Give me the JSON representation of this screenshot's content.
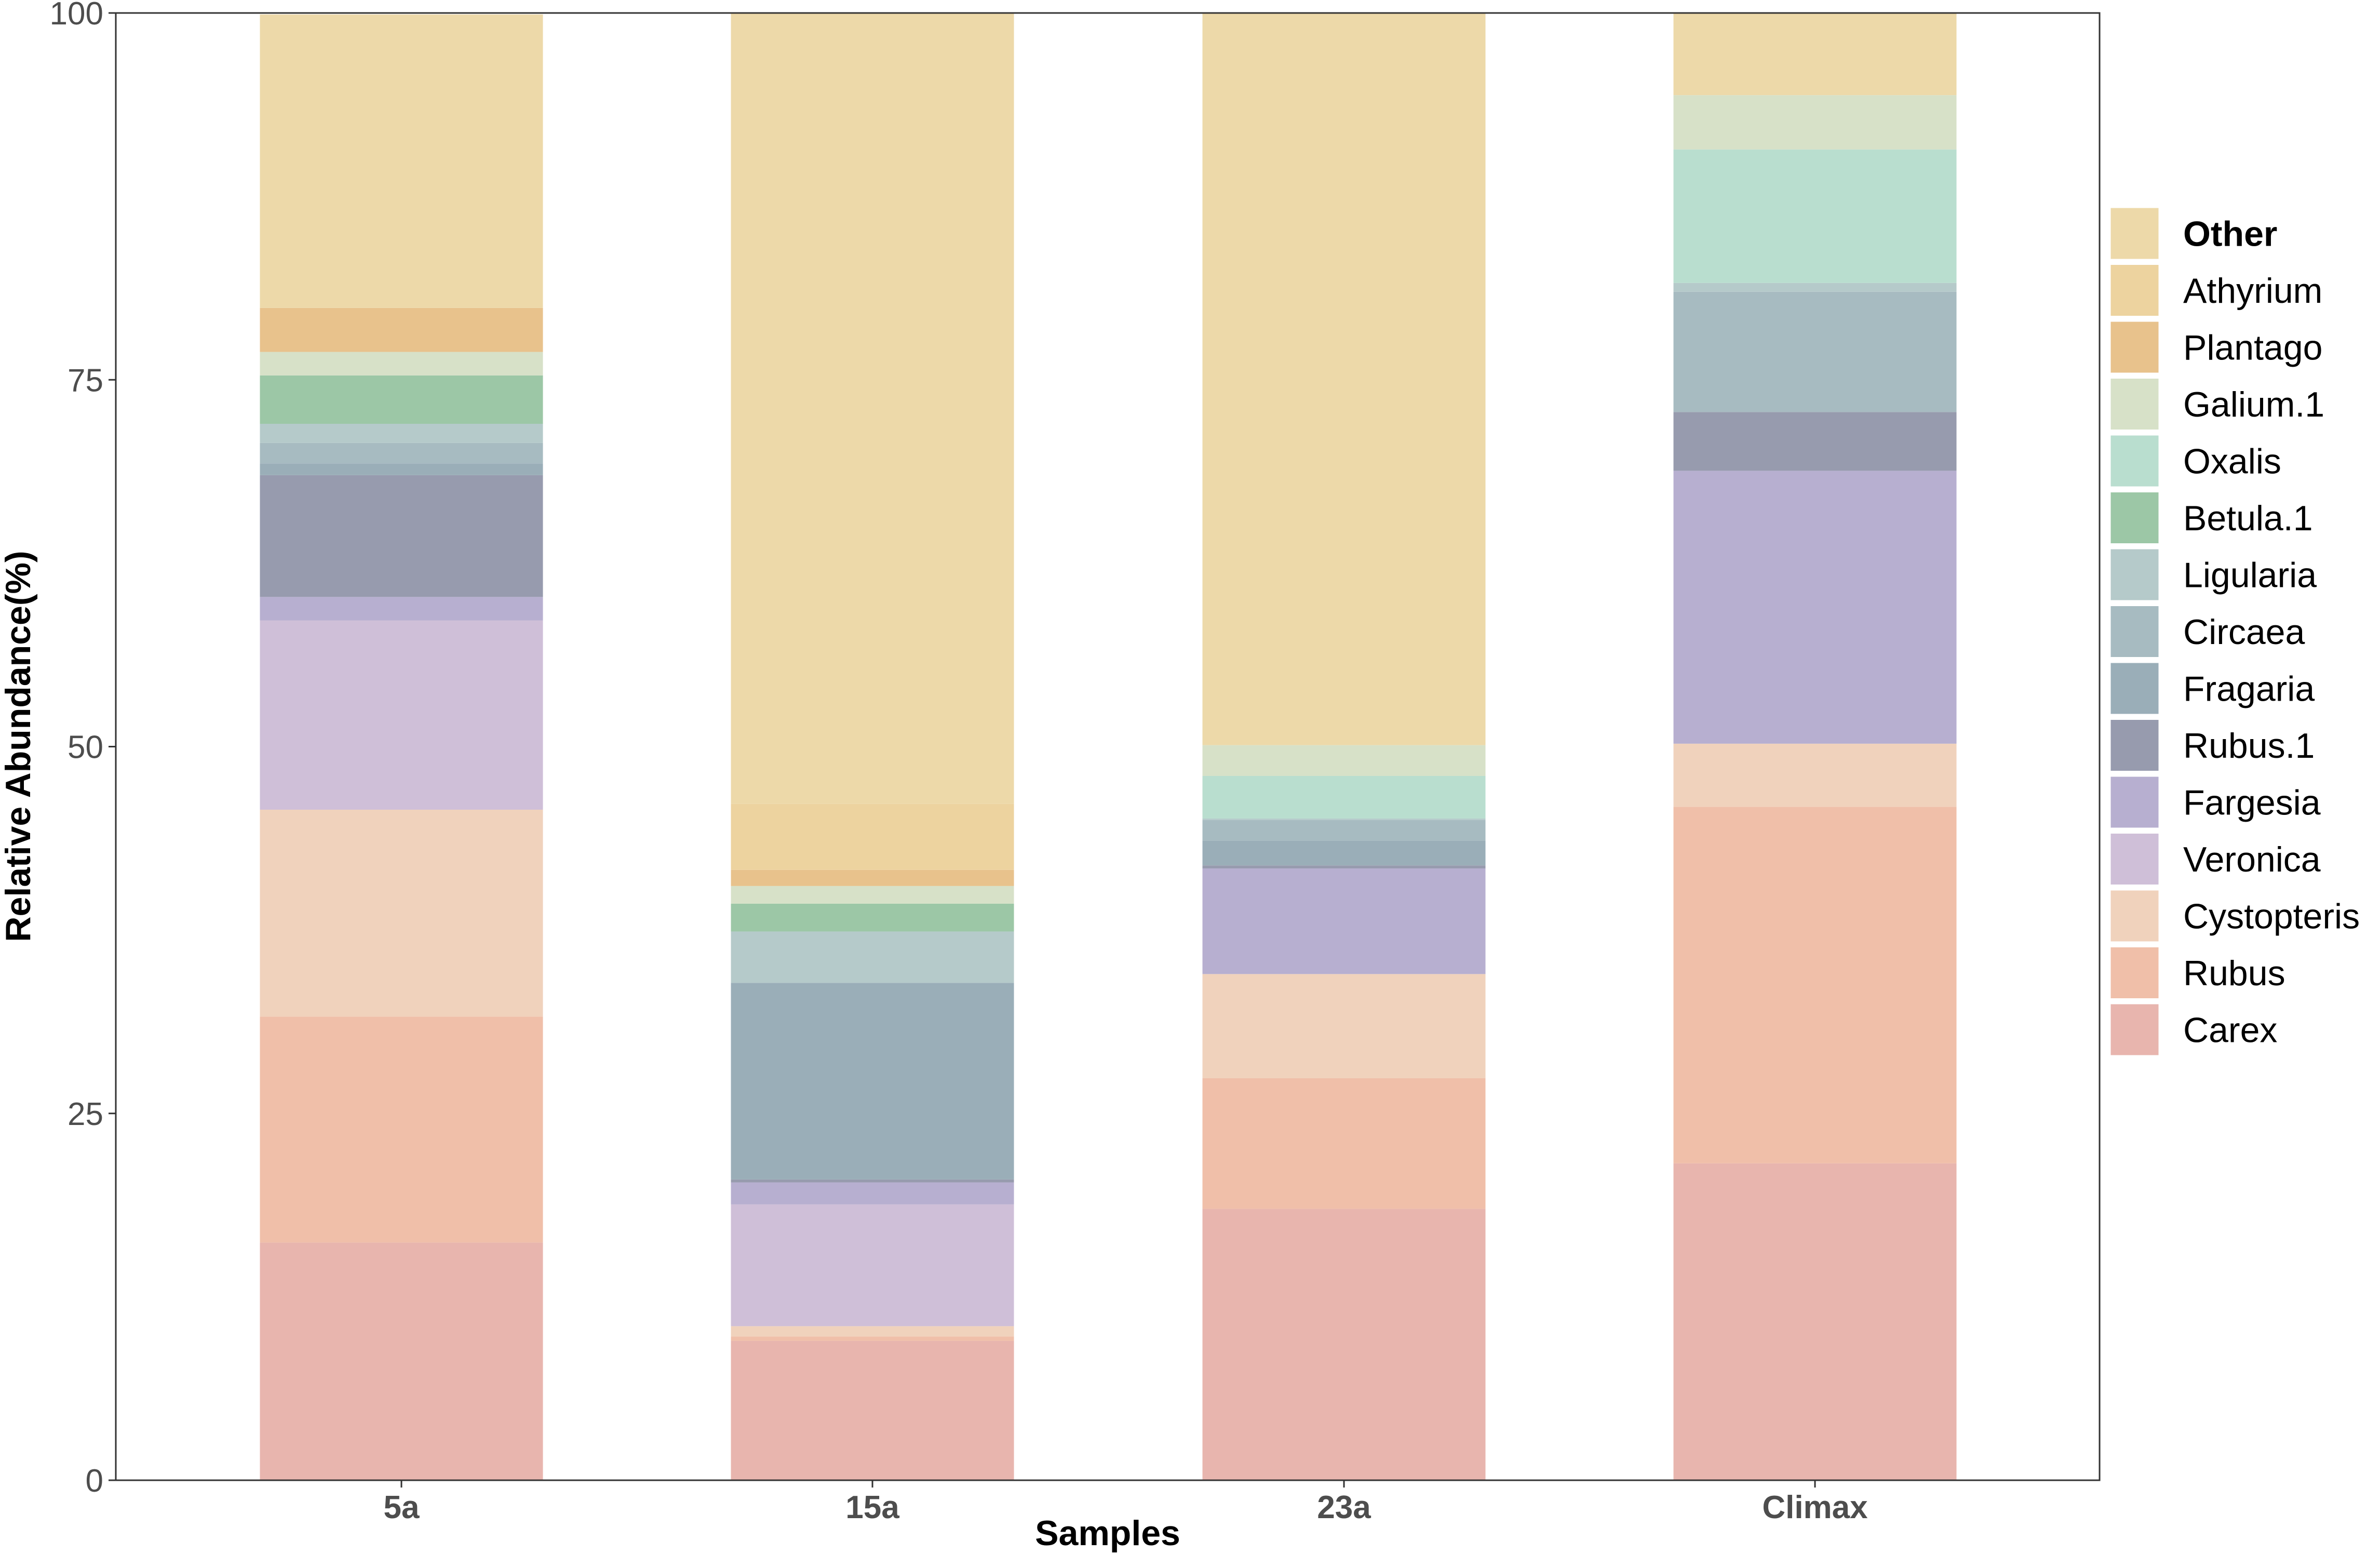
{
  "chart_data": {
    "type": "bar",
    "stacked": true,
    "categories": [
      "5a",
      "15a",
      "23a",
      "Climax"
    ],
    "xlabel": "Samples",
    "ylabel": "Relative Abundance(%)",
    "ylim": [
      0,
      100
    ],
    "yticks": [
      0,
      25,
      50,
      75,
      100
    ],
    "grid": false,
    "legend_position": "right",
    "series": [
      {
        "name": "Carex",
        "color": "#E8B5AE",
        "values": [
          16.2,
          9.5,
          18.5,
          21.6
        ]
      },
      {
        "name": "Rubus",
        "color": "#F0BFA9",
        "values": [
          15.4,
          0.3,
          8.9,
          24.3
        ]
      },
      {
        "name": "Cystopteris",
        "color": "#F0D2BC",
        "values": [
          14.1,
          0.7,
          7.1,
          4.3
        ]
      },
      {
        "name": "Veronica",
        "color": "#CFBFD8",
        "values": [
          12.9,
          8.3,
          0.0,
          0.0
        ]
      },
      {
        "name": "Fargesia",
        "color": "#B7AFD0",
        "values": [
          1.6,
          1.5,
          7.2,
          18.6
        ]
      },
      {
        "name": "Rubus.1",
        "color": "#979BAE",
        "values": [
          8.3,
          0.2,
          0.2,
          4.0
        ]
      },
      {
        "name": "Fragaria",
        "color": "#9AAEB8",
        "values": [
          0.8,
          13.4,
          1.7,
          0.0
        ]
      },
      {
        "name": "Circaea",
        "color": "#A7BBC1",
        "values": [
          1.4,
          0.0,
          1.4,
          8.2
        ]
      },
      {
        "name": "Ligularia",
        "color": "#B5CACA",
        "values": [
          1.3,
          3.5,
          0.1,
          0.6
        ]
      },
      {
        "name": "Betula.1",
        "color": "#9CC7A6",
        "values": [
          3.3,
          1.9,
          0.0,
          0.0
        ]
      },
      {
        "name": "Oxalis",
        "color": "#B9DECF",
        "values": [
          0.0,
          0.0,
          2.9,
          9.1
        ]
      },
      {
        "name": "Galium.1",
        "color": "#D7E1C8",
        "values": [
          1.6,
          1.2,
          2.1,
          3.7
        ]
      },
      {
        "name": "Plantago",
        "color": "#E8C28C",
        "values": [
          3.0,
          1.1,
          0.0,
          0.0
        ]
      },
      {
        "name": "Athyrium",
        "color": "#EDD39F",
        "values": [
          0.0,
          4.5,
          0.0,
          0.0
        ]
      },
      {
        "name": "Other",
        "color": "#EDD9A9",
        "values": [
          20.0,
          54.0,
          50.0,
          6.0
        ]
      }
    ],
    "legend_order": [
      "Other",
      "Athyrium",
      "Plantago",
      "Galium.1",
      "Oxalis",
      "Betula.1",
      "Ligularia",
      "Circaea",
      "Fragaria",
      "Rubus.1",
      "Fargesia",
      "Veronica",
      "Cystopteris",
      "Rubus",
      "Carex"
    ]
  }
}
